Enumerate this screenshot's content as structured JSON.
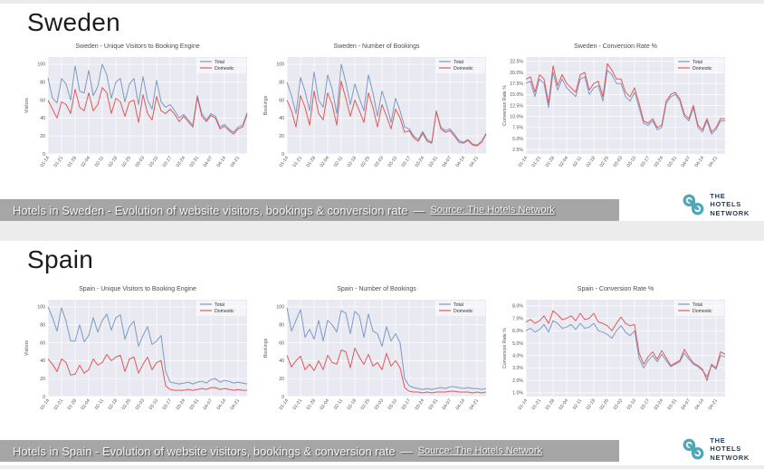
{
  "page": {
    "sections": [
      {
        "title": "Sweden",
        "caption": "Hotels in Sweden - Evolution of website visitors, bookings & conversion rate",
        "caption_separator": "—",
        "caption_source": "Source: The Hotels Network",
        "logo_lines": [
          "THE",
          "HOTELS",
          "NETWORK"
        ]
      },
      {
        "title": "Spain",
        "caption": "Hotels in Spain - Evolution of website visitors, bookings & conversion rate",
        "caption_separator": "—",
        "caption_source": "Source: The Hotels Network",
        "logo_lines": [
          "THE",
          "HOTELS",
          "NETWORK"
        ]
      }
    ]
  },
  "colors": {
    "plot_bg": "#e9e9f1",
    "grid": "#ffffff",
    "total_blue": "#7d9ac4",
    "domestic_red": "#dd5a5a",
    "caption_bar_bg": "#a6a6a6",
    "logo_teal": "#4fa8b8",
    "logo_navy": "#263a5e",
    "tick_text": "#555555"
  },
  "chart_data": [
    {
      "type": "line",
      "title": "Sweden - Unique Visitors to Booking Engine",
      "ylabel": "Visitors",
      "ylim": [
        0,
        108
      ],
      "yticks": [
        0,
        20,
        40,
        60,
        80,
        100
      ],
      "ytick_format": "plain",
      "grid": true,
      "legend_position": "upper right",
      "x_tick_labels": [
        "01-14",
        "01-21",
        "01-28",
        "02-04",
        "02-11",
        "02-18",
        "02-25",
        "03-03",
        "03-10",
        "03-17",
        "03-24",
        "03-31",
        "04-07",
        "04-14",
        "04-21"
      ],
      "points_per_tick": 3,
      "series": [
        {
          "name": "Total",
          "color": "#7d9ac4",
          "values": [
            85,
            62,
            57,
            84,
            78,
            60,
            98,
            70,
            68,
            93,
            65,
            75,
            100,
            88,
            62,
            80,
            84,
            58,
            78,
            84,
            55,
            86,
            60,
            50,
            82,
            58,
            52,
            55,
            48,
            40,
            44,
            38,
            32,
            65,
            45,
            38,
            45,
            42,
            30,
            33,
            28,
            24,
            30,
            32,
            46
          ]
        },
        {
          "name": "Domestic",
          "color": "#dd5a5a",
          "values": [
            60,
            50,
            40,
            58,
            55,
            45,
            72,
            52,
            48,
            68,
            48,
            55,
            74,
            68,
            45,
            62,
            58,
            42,
            58,
            60,
            35,
            66,
            45,
            38,
            64,
            48,
            45,
            50,
            44,
            36,
            42,
            36,
            30,
            63,
            42,
            36,
            43,
            40,
            28,
            31,
            26,
            22,
            28,
            30,
            44
          ]
        }
      ]
    },
    {
      "type": "line",
      "title": "Sweden - Number of Bookings",
      "ylabel": "Bookings",
      "ylim": [
        0,
        108
      ],
      "yticks": [
        0,
        20,
        40,
        60,
        80,
        100
      ],
      "ytick_format": "plain",
      "grid": true,
      "legend_position": "upper right",
      "x_tick_labels": [
        "01-14",
        "01-21",
        "01-28",
        "02-04",
        "02-11",
        "02-18",
        "02-25",
        "03-03",
        "03-10",
        "03-17",
        "03-24",
        "03-31",
        "04-07",
        "04-14",
        "04-21"
      ],
      "points_per_tick": 3,
      "series": [
        {
          "name": "Total",
          "color": "#7d9ac4",
          "values": [
            80,
            65,
            45,
            85,
            70,
            48,
            91,
            60,
            52,
            88,
            72,
            45,
            100,
            80,
            55,
            78,
            62,
            48,
            88,
            68,
            42,
            70,
            55,
            35,
            62,
            48,
            30,
            28,
            20,
            16,
            25,
            16,
            13,
            48,
            30,
            26,
            28,
            22,
            15,
            13,
            16,
            11,
            10,
            14,
            23
          ]
        },
        {
          "name": "Domestic",
          "color": "#dd5a5a",
          "values": [
            60,
            48,
            30,
            65,
            52,
            32,
            70,
            45,
            38,
            68,
            55,
            32,
            81,
            62,
            42,
            60,
            48,
            35,
            68,
            52,
            30,
            55,
            42,
            28,
            50,
            40,
            24,
            26,
            18,
            14,
            23,
            14,
            12,
            47,
            28,
            24,
            26,
            20,
            13,
            12,
            15,
            10,
            9,
            13,
            22
          ]
        }
      ]
    },
    {
      "type": "line",
      "title": "Sweden - Conversion Rate %",
      "ylabel": "Conversion Rate %",
      "ylim": [
        1.5,
        23.5
      ],
      "yticks": [
        2.5,
        5.0,
        7.5,
        10.0,
        12.5,
        15.0,
        17.5,
        20.0,
        22.5
      ],
      "ytick_format": "pct1",
      "grid": true,
      "legend_position": "upper right",
      "x_tick_labels": [
        "01-14",
        "01-21",
        "01-28",
        "02-04",
        "02-11",
        "02-18",
        "02-25",
        "03-03",
        "03-10",
        "03-17",
        "03-24",
        "03-31",
        "04-07",
        "04-14",
        "04-21"
      ],
      "points_per_tick": 3,
      "series": [
        {
          "name": "Total",
          "color": "#7d9ac4",
          "values": [
            17.5,
            18,
            14.5,
            18.5,
            17.5,
            12,
            20,
            16,
            18.5,
            16.5,
            15.5,
            14.5,
            18.5,
            19,
            15,
            16.5,
            17,
            13.5,
            20.5,
            19.5,
            17.5,
            17.5,
            14.5,
            13.5,
            15.5,
            12,
            8.5,
            8,
            9,
            7,
            7.5,
            13,
            14.5,
            15,
            13.5,
            10,
            9,
            12,
            7.5,
            6.5,
            9,
            6,
            7,
            9,
            9
          ]
        },
        {
          "name": "Domestic",
          "color": "#dd5a5a",
          "values": [
            18.5,
            19,
            15.5,
            19.5,
            18.5,
            13,
            21.5,
            17,
            19.5,
            17.5,
            16.5,
            15.5,
            19.5,
            20,
            16,
            17.5,
            18,
            14.5,
            22,
            20.5,
            18.5,
            18.5,
            15.5,
            14.5,
            16.5,
            13,
            9,
            8.5,
            9.5,
            7.5,
            8,
            13.5,
            15,
            15.5,
            14,
            10.5,
            9.5,
            12.5,
            8,
            7,
            9.5,
            6.5,
            7.5,
            9.5,
            9.5
          ]
        }
      ]
    },
    {
      "type": "line",
      "title": "Spain - Unique Visitors to Booking Engine",
      "ylabel": "Visitors",
      "ylim": [
        0,
        108
      ],
      "yticks": [
        0,
        20,
        40,
        60,
        80,
        100
      ],
      "ytick_format": "plain",
      "grid": true,
      "legend_position": "upper right",
      "x_tick_labels": [
        "01-14",
        "01-21",
        "01-28",
        "02-04",
        "02-11",
        "02-18",
        "02-25",
        "03-03",
        "03-10",
        "03-17",
        "03-24",
        "03-31",
        "04-07",
        "04-14",
        "04-21"
      ],
      "points_per_tick": 3,
      "series": [
        {
          "name": "Total",
          "color": "#7d9ac4",
          "values": [
            100,
            88,
            73,
            99,
            84,
            62,
            62,
            80,
            61,
            68,
            88,
            72,
            85,
            92,
            74,
            88,
            91,
            64,
            78,
            84,
            56,
            68,
            78,
            58,
            62,
            68,
            28,
            16,
            15,
            14,
            15,
            16,
            14,
            16,
            17,
            15,
            19,
            20,
            16,
            18,
            17,
            15,
            16,
            15,
            14
          ]
        },
        {
          "name": "Domestic",
          "color": "#dd5a5a",
          "values": [
            42,
            36,
            28,
            42,
            38,
            24,
            25,
            35,
            26,
            30,
            42,
            35,
            38,
            47,
            40,
            44,
            46,
            28,
            42,
            44,
            26,
            36,
            44,
            30,
            38,
            40,
            12,
            8,
            7,
            7,
            7,
            8,
            7,
            8,
            9,
            8,
            10,
            10,
            8,
            9,
            8,
            7,
            8,
            7,
            7
          ]
        }
      ]
    },
    {
      "type": "line",
      "title": "Spain - Number of Bookings",
      "ylabel": "Bookings",
      "ylim": [
        0,
        108
      ],
      "yticks": [
        0,
        20,
        40,
        60,
        80,
        100
      ],
      "ytick_format": "plain",
      "grid": true,
      "legend_position": "upper right",
      "x_tick_labels": [
        "01-14",
        "01-21",
        "01-28",
        "02-04",
        "02-11",
        "02-18",
        "02-25",
        "03-03",
        "03-10",
        "03-17",
        "03-24",
        "03-31",
        "04-07",
        "04-14",
        "04-21"
      ],
      "points_per_tick": 3,
      "series": [
        {
          "name": "Total",
          "color": "#7d9ac4",
          "values": [
            99,
            73,
            85,
            97,
            66,
            75,
            64,
            85,
            62,
            85,
            80,
            72,
            96,
            93,
            70,
            95,
            90,
            66,
            92,
            73,
            70,
            56,
            78,
            62,
            70,
            60,
            20,
            12,
            10,
            9,
            8,
            9,
            8,
            9,
            10,
            9,
            11,
            11,
            10,
            9,
            10,
            9,
            9,
            8,
            9
          ]
        },
        {
          "name": "Domestic",
          "color": "#dd5a5a",
          "values": [
            46,
            33,
            40,
            45,
            30,
            36,
            29,
            40,
            30,
            46,
            38,
            36,
            52,
            50,
            32,
            54,
            44,
            36,
            47,
            34,
            38,
            30,
            48,
            34,
            40,
            32,
            10,
            6,
            5,
            5,
            4,
            5,
            4,
            5,
            5,
            5,
            6,
            6,
            5,
            5,
            5,
            4,
            5,
            4,
            5
          ]
        }
      ]
    },
    {
      "type": "line",
      "title": "Spain - Conversion Rate %",
      "ylabel": "Conversion Rate %",
      "ylim": [
        0.7,
        8.5
      ],
      "yticks": [
        1.0,
        2.0,
        3.0,
        4.0,
        5.0,
        6.0,
        7.0,
        8.0
      ],
      "ytick_format": "pct1",
      "grid": true,
      "legend_position": "upper right",
      "x_tick_labels": [
        "01-14",
        "01-21",
        "01-28",
        "02-04",
        "02-11",
        "02-18",
        "02-25",
        "03-03",
        "03-10",
        "03-17",
        "03-24",
        "03-31",
        "04-07",
        "04-14",
        "04-21"
      ],
      "points_per_tick": 3,
      "series": [
        {
          "name": "Total",
          "color": "#7d9ac4",
          "values": [
            6.0,
            6.2,
            5.9,
            6.1,
            6.5,
            5.9,
            6.8,
            6.6,
            6.2,
            6.3,
            6.5,
            6.1,
            6.6,
            6.2,
            6.3,
            6.6,
            6.0,
            5.9,
            5.7,
            5.4,
            6.0,
            6.4,
            5.9,
            5.6,
            6.0,
            3.8,
            3.0,
            3.6,
            4.0,
            3.5,
            4.1,
            3.6,
            3.1,
            3.3,
            3.5,
            4.2,
            3.7,
            3.3,
            3.1,
            2.8,
            2.3,
            3.2,
            2.9,
            4.0,
            3.9
          ]
        },
        {
          "name": "Domestic",
          "color": "#dd5a5a",
          "values": [
            6.7,
            6.9,
            6.6,
            6.8,
            7.2,
            6.6,
            7.6,
            7.3,
            6.9,
            7.0,
            7.2,
            6.8,
            7.4,
            6.9,
            7.0,
            7.4,
            6.7,
            6.6,
            6.4,
            6.0,
            6.6,
            7.1,
            6.6,
            6.4,
            6.5,
            4.2,
            3.3,
            3.9,
            4.3,
            3.7,
            4.4,
            3.8,
            3.2,
            3.4,
            3.6,
            4.5,
            3.9,
            3.4,
            3.2,
            2.9,
            2.0,
            3.3,
            3.0,
            4.3,
            4.1
          ]
        }
      ]
    }
  ]
}
